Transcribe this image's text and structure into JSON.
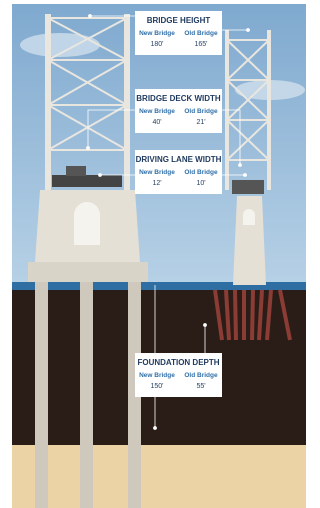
{
  "callouts": [
    {
      "title": "BRIDGE HEIGHT",
      "new_label": "New Bridge",
      "new_value": "180'",
      "old_label": "Old Bridge",
      "old_value": "165'"
    },
    {
      "title": "BRIDGE DECK WIDTH",
      "new_label": "New Bridge",
      "new_value": "40'",
      "old_label": "Old Bridge",
      "old_value": "21'"
    },
    {
      "title": "DRIVING LANE WIDTH",
      "new_label": "New Bridge",
      "new_value": "12'",
      "old_label": "Old Bridge",
      "old_value": "10'"
    },
    {
      "title": "FOUNDATION DEPTH",
      "new_label": "New Bridge",
      "new_value": "150'",
      "old_label": "Old Bridge",
      "old_value": "55'"
    }
  ]
}
